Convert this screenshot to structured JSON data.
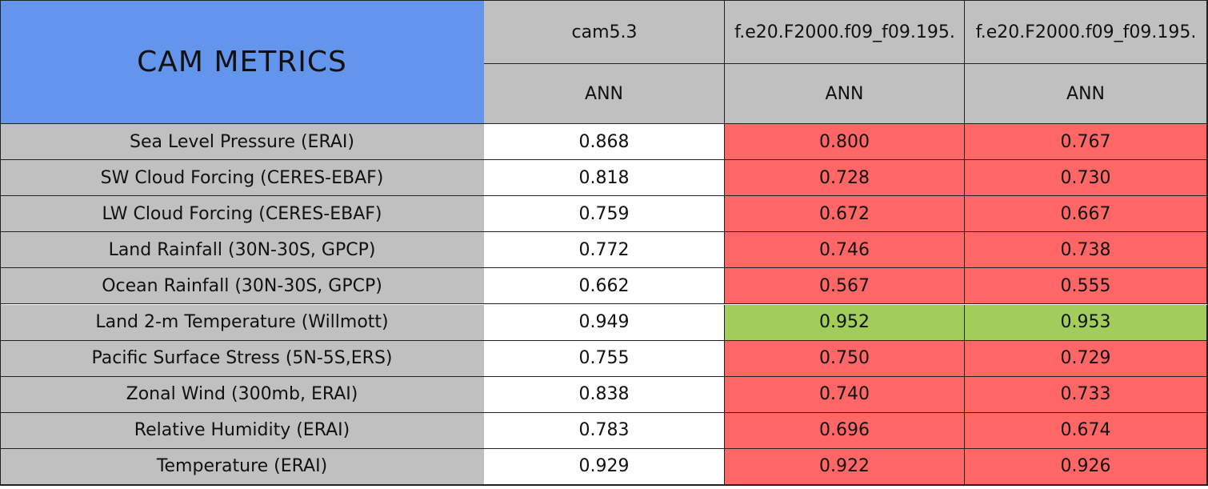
{
  "table": {
    "title": "CAM METRICS",
    "title_color": "#6495ed",
    "header_color": "#c0c0c0",
    "label_color": "#c0c0c0",
    "columns": [
      "cam5.3",
      "f.e20.F2000.f09_f09.195.",
      "f.e20.F2000.f09_f09.195."
    ],
    "seasons": [
      "ANN",
      "ANN",
      "ANN"
    ],
    "rows": [
      {
        "label": "Sea Level Pressure (ERAI)",
        "values": [
          "0.868",
          "0.800",
          "0.767"
        ],
        "colors": [
          "#ffffff",
          "#ff6666",
          "#ff6666"
        ]
      },
      {
        "label": "SW Cloud Forcing (CERES-EBAF)",
        "values": [
          "0.818",
          "0.728",
          "0.730"
        ],
        "colors": [
          "#ffffff",
          "#ff6666",
          "#ff6666"
        ]
      },
      {
        "label": "LW Cloud Forcing (CERES-EBAF)",
        "values": [
          "0.759",
          "0.672",
          "0.667"
        ],
        "colors": [
          "#ffffff",
          "#ff6666",
          "#ff6666"
        ]
      },
      {
        "label": "Land Rainfall (30N-30S, GPCP)",
        "values": [
          "0.772",
          "0.746",
          "0.738"
        ],
        "colors": [
          "#ffffff",
          "#ff6666",
          "#ff6666"
        ]
      },
      {
        "label": "Ocean Rainfall (30N-30S, GPCP)",
        "values": [
          "0.662",
          "0.567",
          "0.555"
        ],
        "colors": [
          "#ffffff",
          "#ff6666",
          "#ff6666"
        ]
      },
      {
        "label": "Land 2-m Temperature (Willmott)",
        "values": [
          "0.949",
          "0.952",
          "0.953"
        ],
        "colors": [
          "#ffffff",
          "#a2cd5a",
          "#a2cd5a"
        ]
      },
      {
        "label": "Pacific Surface Stress (5N-5S,ERS)",
        "values": [
          "0.755",
          "0.750",
          "0.729"
        ],
        "colors": [
          "#ffffff",
          "#ff6666",
          "#ff6666"
        ]
      },
      {
        "label": "Zonal Wind (300mb, ERAI)",
        "values": [
          "0.838",
          "0.740",
          "0.733"
        ],
        "colors": [
          "#ffffff",
          "#ff6666",
          "#ff6666"
        ]
      },
      {
        "label": "Relative Humidity (ERAI)",
        "values": [
          "0.783",
          "0.696",
          "0.674"
        ],
        "colors": [
          "#ffffff",
          "#ff6666",
          "#ff6666"
        ]
      },
      {
        "label": "Temperature (ERAI)",
        "values": [
          "0.929",
          "0.922",
          "0.926"
        ],
        "colors": [
          "#ffffff",
          "#ff6666",
          "#ff6666"
        ]
      }
    ]
  }
}
